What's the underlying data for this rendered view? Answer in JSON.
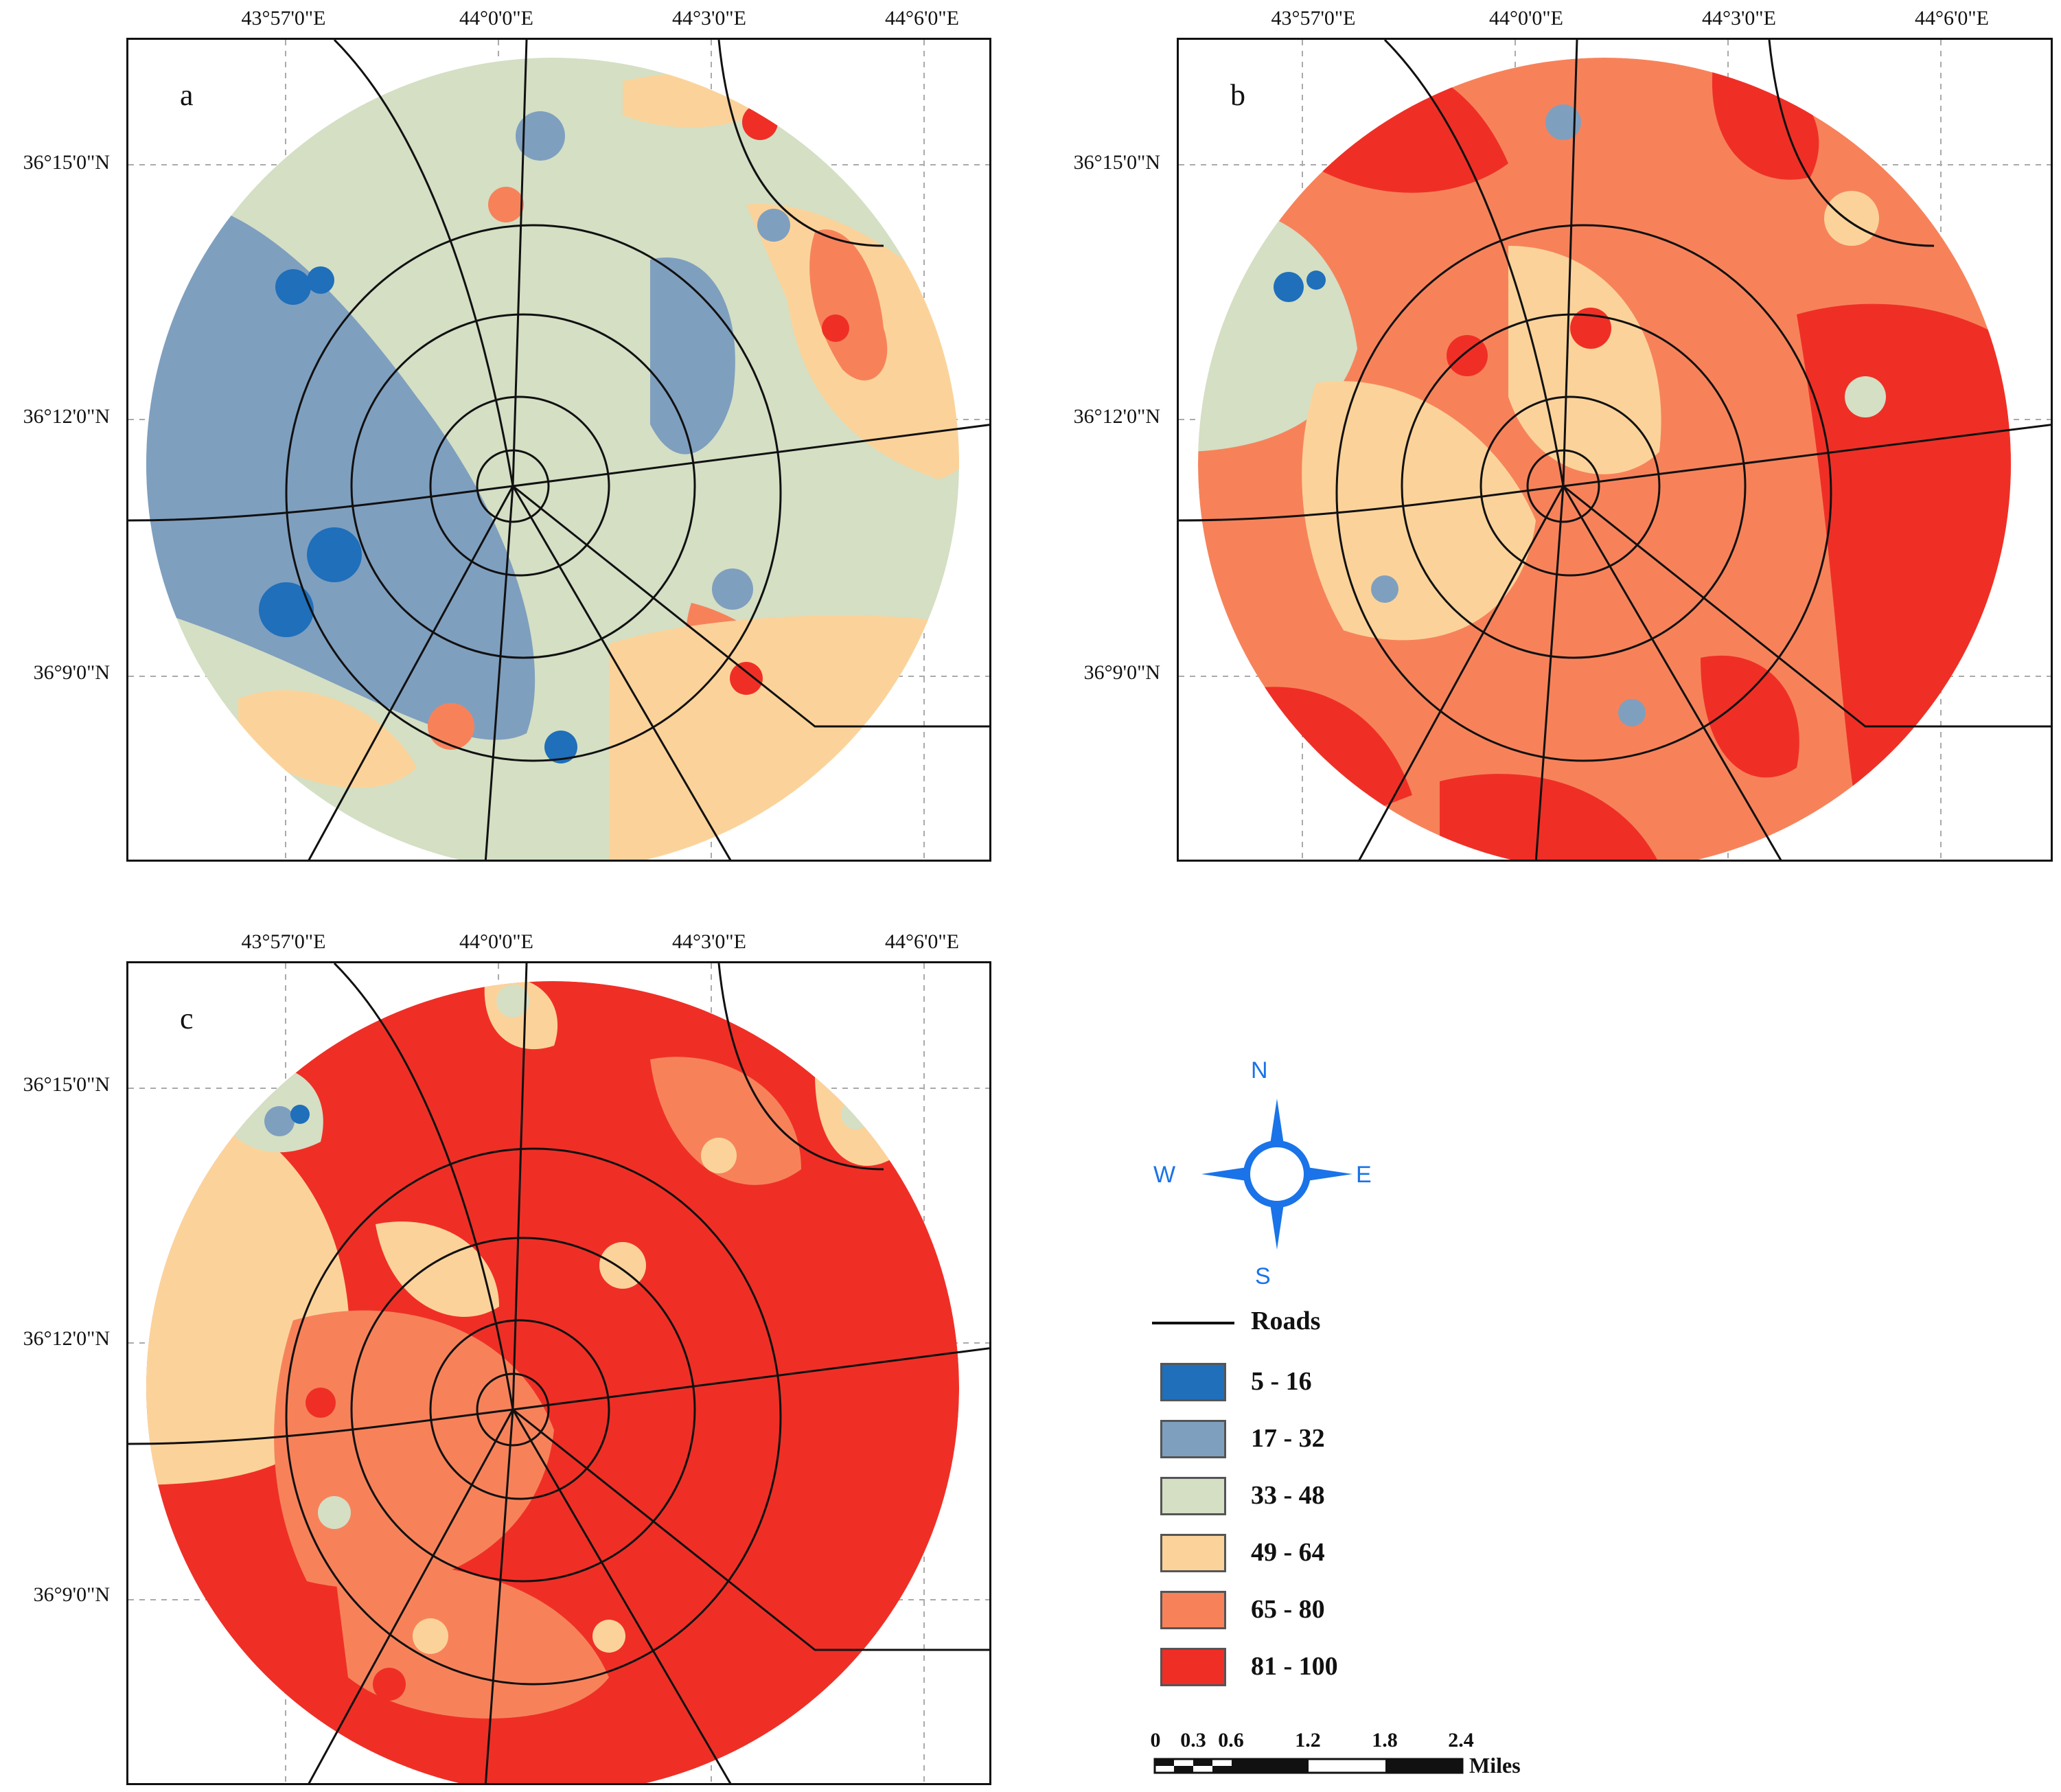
{
  "axes": {
    "lon_ticks": [
      "43°57'0\"E",
      "44°0'0\"E",
      "44°3'0\"E",
      "44°6'0\"E"
    ],
    "lat_ticks": [
      "36°15'0\"N",
      "36°12'0\"N",
      "36°9'0\"N"
    ]
  },
  "panels": [
    {
      "label": "a",
      "summary": "predominantly blue/green west, orange-red patches east"
    },
    {
      "label": "b",
      "summary": "mixed, red dominant in east and south"
    },
    {
      "label": "c",
      "summary": "red dominant overall"
    }
  ],
  "legend": {
    "roads_label": "Roads",
    "classes": [
      {
        "range": "5 - 16",
        "color": "#1f6fba"
      },
      {
        "range": "17 - 32",
        "color": "#7f9fbf"
      },
      {
        "range": "33 - 48",
        "color": "#d4dfc4"
      },
      {
        "range": "49 - 64",
        "color": "#fbd39a"
      },
      {
        "range": "65 - 80",
        "color": "#f7825a"
      },
      {
        "range": "81 - 100",
        "color": "#ef2f26"
      }
    ]
  },
  "compass": {
    "n": "N",
    "s": "S",
    "e": "E",
    "w": "W",
    "color": "#1a73e8"
  },
  "scale": {
    "ticks": [
      "0",
      "0.3",
      "0.6",
      "1.2",
      "1.8",
      "2.4"
    ],
    "unit": "Miles"
  }
}
